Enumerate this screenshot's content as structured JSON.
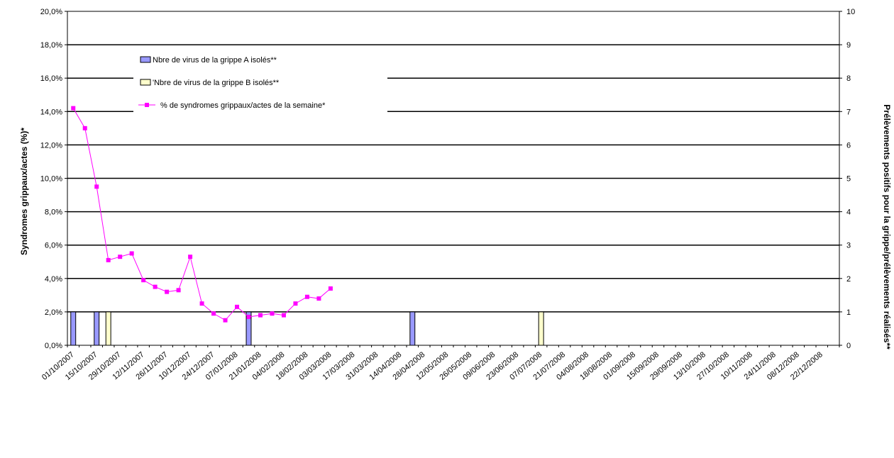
{
  "chart_data": {
    "type": "bar+line",
    "ylabel": "Syndromes grippaux/actes (%)*",
    "y2label": "Prélèvements positifs pour la grippe/prélèvements réalisés**",
    "ylim": [
      0,
      20
    ],
    "y2lim": [
      0,
      10
    ],
    "y_ticks": [
      "0,0%",
      "2,0%",
      "4,0%",
      "6,0%",
      "8,0%",
      "10,0%",
      "12,0%",
      "14,0%",
      "16,0%",
      "18,0%",
      "20,0%"
    ],
    "y2_ticks": [
      "0",
      "1",
      "2",
      "3",
      "4",
      "5",
      "6",
      "7",
      "8",
      "9",
      "10"
    ],
    "x_ticks": [
      "01/10/2007",
      "15/10/2007",
      "29/10/2007",
      "12/11/2007",
      "26/11/2007",
      "10/12/2007",
      "24/12/2007",
      "07/01/2008",
      "21/01/2008",
      "04/02/2008",
      "18/02/2008",
      "03/03/2008",
      "17/03/2008",
      "31/03/2008",
      "14/04/2008",
      "28/04/2008",
      "12/05/2008",
      "26/05/2008",
      "09/06/2008",
      "23/06/2008",
      "07/07/2008",
      "21/07/2008",
      "04/08/2008",
      "18/08/2008",
      "01/09/2008",
      "15/09/2008",
      "29/09/2008",
      "13/10/2008",
      "27/10/2008",
      "10/11/2008",
      "24/11/2008",
      "08/12/2008",
      "22/12/2008"
    ],
    "weeks": 66,
    "grid": "horizontal",
    "legend_position": "top-left",
    "colors": {
      "grippe_a": "#9999ff",
      "grippe_b": "#ffffcc",
      "line": "#ff00ff",
      "bar_border": "#000000"
    },
    "series": [
      {
        "name": "Nbre de virus de la grippe A  isolés**",
        "kind": "bar",
        "axis": "right",
        "points": [
          {
            "week": 0,
            "value": 1
          },
          {
            "week": 2,
            "value": 1
          },
          {
            "week": 15,
            "value": 1
          },
          {
            "week": 29,
            "value": 1
          }
        ]
      },
      {
        "name": "'Nbre de virus de la grippe B isolés**",
        "kind": "bar",
        "axis": "right",
        "points": [
          {
            "week": 3,
            "value": 1
          },
          {
            "week": 40,
            "value": 1
          }
        ]
      },
      {
        "name": "% de syndromes grippaux/actes de la semaine*",
        "kind": "line",
        "axis": "left",
        "values": [
          14.2,
          13.0,
          9.5,
          5.1,
          5.3,
          5.5,
          3.9,
          3.5,
          3.2,
          3.3,
          5.3,
          2.5,
          1.9,
          1.5,
          2.3,
          1.7,
          1.8,
          1.9,
          1.8,
          2.5,
          2.9,
          2.8,
          3.4
        ]
      }
    ]
  }
}
